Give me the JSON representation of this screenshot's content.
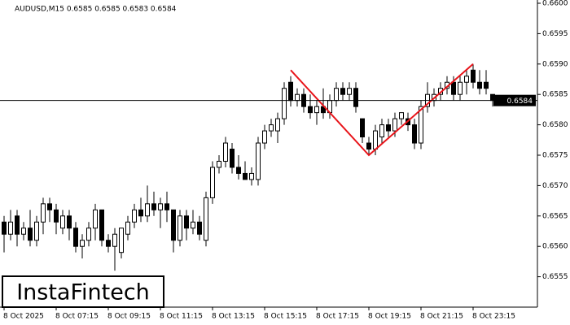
{
  "chart_data": {
    "type": "candlestick",
    "header": "AUDUSD,M15  0.6585 0.6585 0.6583 0.6584",
    "logo": "InstaFintech",
    "categories": [
      "8 Oct 2025",
      null,
      null,
      null,
      null,
      null,
      null,
      null,
      "8 Oct 07:15",
      null,
      null,
      null,
      null,
      null,
      null,
      null,
      "8 Oct 09:15",
      null,
      null,
      null,
      null,
      null,
      null,
      null,
      "8 Oct 11:15",
      null,
      null,
      null,
      null,
      null,
      null,
      null,
      "8 Oct 13:15",
      null,
      null,
      null,
      null,
      null,
      null,
      null,
      "8 Oct 15:15",
      null,
      null,
      null,
      null,
      null,
      null,
      null,
      "8 Oct 17:15",
      null,
      null,
      null,
      null,
      null,
      null,
      null,
      "8 Oct 19:15",
      null,
      null,
      null,
      null,
      null,
      null,
      null,
      "8 Oct 21:15",
      null,
      null,
      null,
      null,
      null,
      null,
      null,
      "8 Oct 23:15",
      null,
      null,
      null
    ],
    "open": [
      0.6564,
      0.6562,
      0.6565,
      0.6562,
      0.6563,
      0.6561,
      0.6564,
      0.6567,
      0.6566,
      0.6563,
      0.6565,
      0.6563,
      0.656,
      0.6561,
      0.6563,
      0.6566,
      0.6561,
      0.656,
      0.6559,
      0.6562,
      0.6564,
      0.6566,
      0.6565,
      0.6567,
      0.6566,
      0.6567,
      0.6566,
      0.6561,
      0.6565,
      0.6563,
      0.6564,
      0.6561,
      0.6568,
      0.6573,
      0.6574,
      0.6576,
      0.6573,
      0.6572,
      0.6571,
      0.6571,
      0.6577,
      0.6579,
      0.6579,
      0.6581,
      0.6587,
      0.6584,
      0.6585,
      0.6583,
      0.6582,
      0.6583,
      0.6582,
      0.6584,
      0.6586,
      0.6585,
      0.6586,
      0.6581,
      0.6577,
      0.6576,
      0.6578,
      0.658,
      0.6579,
      0.6581,
      0.6581,
      0.658,
      0.6577,
      0.6583,
      0.6584,
      0.6585,
      0.6586,
      0.6587,
      0.6585,
      0.6587,
      0.6589,
      0.6587,
      0.6587,
      0.6585
    ],
    "high": [
      0.6565,
      0.6566,
      0.6566,
      0.6564,
      0.6566,
      0.6565,
      0.6568,
      0.6568,
      0.6567,
      0.6566,
      0.6566,
      0.6564,
      0.6562,
      0.6564,
      0.6567,
      0.6566,
      0.6562,
      0.6563,
      0.6563,
      0.6565,
      0.6567,
      0.6568,
      0.657,
      0.6569,
      0.6568,
      0.6569,
      0.6566,
      0.6566,
      0.6566,
      0.6566,
      0.6565,
      0.6569,
      0.6574,
      0.6575,
      0.6578,
      0.6577,
      0.6575,
      0.6574,
      0.6573,
      0.6578,
      0.658,
      0.6581,
      0.6582,
      0.6587,
      0.6588,
      0.6586,
      0.6586,
      0.6585,
      0.6584,
      0.6586,
      0.6585,
      0.6587,
      0.6587,
      0.6587,
      0.6587,
      0.6581,
      0.6578,
      0.658,
      0.6581,
      0.6581,
      0.6582,
      0.6582,
      0.6582,
      0.6581,
      0.6584,
      0.6587,
      0.6586,
      0.6587,
      0.6588,
      0.6588,
      0.6588,
      0.6589,
      0.659,
      0.6589,
      0.6589,
      0.6585
    ],
    "low": [
      0.6559,
      0.6561,
      0.656,
      0.6561,
      0.656,
      0.656,
      0.6562,
      0.6564,
      0.6562,
      0.6562,
      0.6561,
      0.6559,
      0.6558,
      0.656,
      0.6561,
      0.656,
      0.6559,
      0.6556,
      0.6558,
      0.6561,
      0.6563,
      0.6564,
      0.6564,
      0.6565,
      0.6563,
      0.6564,
      0.6559,
      0.656,
      0.6561,
      0.6562,
      0.6561,
      0.656,
      0.6567,
      0.6572,
      0.6573,
      0.6572,
      0.6571,
      0.6571,
      0.657,
      0.657,
      0.6576,
      0.6578,
      0.6577,
      0.658,
      0.6583,
      0.6583,
      0.6582,
      0.6581,
      0.658,
      0.6581,
      0.6581,
      0.6583,
      0.6584,
      0.6584,
      0.6582,
      0.6577,
      0.6575,
      0.6575,
      0.6577,
      0.6578,
      0.6578,
      0.658,
      0.6579,
      0.6576,
      0.6576,
      0.6582,
      0.6583,
      0.6584,
      0.6585,
      0.6584,
      0.6584,
      0.6585,
      0.6586,
      0.6585,
      0.6585,
      0.6583
    ],
    "close": [
      0.6562,
      0.6564,
      0.6562,
      0.6563,
      0.6561,
      0.6564,
      0.6567,
      0.6566,
      0.6564,
      0.6565,
      0.6563,
      0.656,
      0.6561,
      0.6563,
      0.6566,
      0.6561,
      0.656,
      0.6562,
      0.6563,
      0.6564,
      0.6566,
      0.6565,
      0.6567,
      0.6566,
      0.6567,
      0.6566,
      0.6561,
      0.6565,
      0.6563,
      0.6564,
      0.6562,
      0.6568,
      0.6573,
      0.6574,
      0.6577,
      0.6573,
      0.6572,
      0.6571,
      0.6572,
      0.6577,
      0.6579,
      0.658,
      0.6581,
      0.6586,
      0.6584,
      0.6585,
      0.6583,
      0.6582,
      0.6583,
      0.6582,
      0.6584,
      0.6586,
      0.6585,
      0.6586,
      0.6583,
      0.6578,
      0.6576,
      0.6579,
      0.658,
      0.6579,
      0.6581,
      0.6582,
      0.658,
      0.6577,
      0.6583,
      0.6585,
      0.6585,
      0.6586,
      0.6587,
      0.6585,
      0.6587,
      0.6588,
      0.6587,
      0.6586,
      0.6586,
      0.6584
    ],
    "last_price": 0.6584,
    "pattern": {
      "color": "#e8141a",
      "x": [
        44,
        56,
        72
      ],
      "y": [
        0.6589,
        0.6575,
        0.659
      ]
    },
    "ylim": [
      0.655,
      0.66
    ],
    "yticks": [
      0.6555,
      {
        "value": 0.656,
        "label": "0.6560"
      },
      0.6565,
      {
        "value": 0.657,
        "label": "0.6570"
      },
      0.6575,
      {
        "value": 0.658,
        "label": "0.6580"
      },
      0.6585,
      {
        "value": 0.659,
        "label": "0.6590"
      },
      0.6595,
      {
        "value": 0.66,
        "label": "0.6600"
      }
    ]
  }
}
